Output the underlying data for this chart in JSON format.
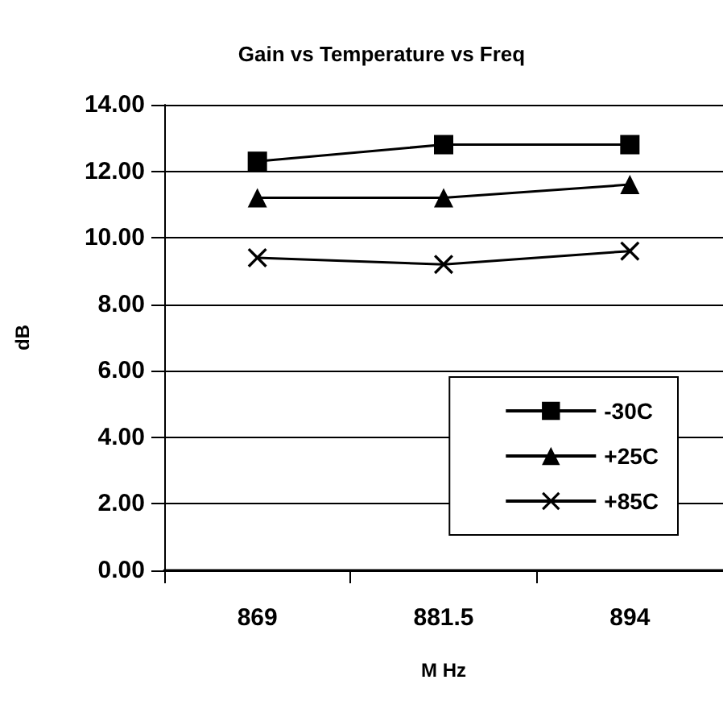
{
  "chart_data": {
    "type": "line",
    "title": "Gain vs Temperature vs Freq",
    "xlabel": "M Hz",
    "ylabel": "dB",
    "categories": [
      "869",
      "881.5",
      "894"
    ],
    "series": [
      {
        "name": "-30C",
        "color": "#000000",
        "values": [
          12.3,
          12.8,
          12.8
        ],
        "marker": "square"
      },
      {
        "name": "+25C",
        "color": "#000000",
        "values": [
          11.2,
          11.2,
          11.6
        ],
        "marker": "triangle"
      },
      {
        "name": "+85C",
        "color": "#000000",
        "values": [
          9.4,
          9.2,
          9.6
        ],
        "marker": "cross"
      }
    ],
    "ylim": [
      0,
      14
    ],
    "yticks": [
      {
        "value": 0,
        "label": "0.00"
      },
      {
        "value": 2,
        "label": "2.00"
      },
      {
        "value": 4,
        "label": "4.00"
      },
      {
        "value": 6,
        "label": "6.00"
      },
      {
        "value": 8,
        "label": "8.00"
      },
      {
        "value": 10,
        "label": "10.00"
      },
      {
        "value": 12,
        "label": "12.00"
      },
      {
        "value": 14,
        "label": "14.00"
      }
    ],
    "grid": "y",
    "legend": "bottom right",
    "line_style": "solid"
  }
}
